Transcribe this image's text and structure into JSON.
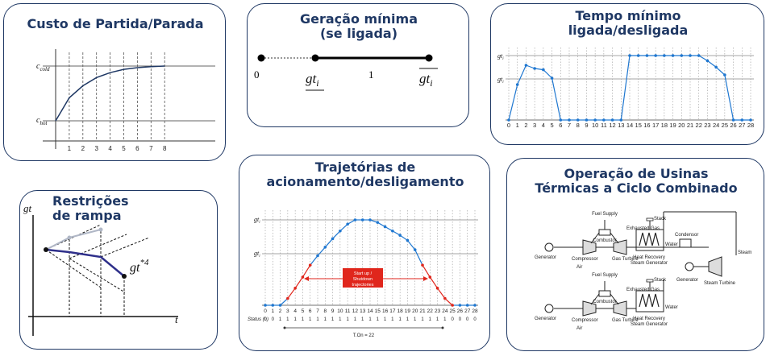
{
  "panels": {
    "startup_cost": {
      "title": "Custo de Partida/Parada",
      "y_labels": [
        "c",
        "cold",
        "c",
        "hot"
      ],
      "x_ticks": [
        "1",
        "2",
        "3",
        "4",
        "5",
        "6",
        "7",
        "8"
      ],
      "curve_values": [
        0.0,
        0.42,
        0.64,
        0.79,
        0.88,
        0.94,
        0.97,
        0.99,
        1.0
      ]
    },
    "min_generation": {
      "title_line1": "Geração mínima",
      "title_line2": "(se ligada)",
      "label_zero": "0",
      "label_one": "1",
      "label_gt": "gt",
      "label_i": "i"
    },
    "min_time": {
      "title_line1": "Tempo mínimo",
      "title_line2": "ligada/desligada",
      "y_labels": [
        "gt",
        "i",
        "gt",
        "i"
      ],
      "x_ticks": [
        "0",
        "1",
        "2",
        "3",
        "4",
        "5",
        "6",
        "7",
        "8",
        "9",
        "10",
        "11",
        "12",
        "13",
        "14",
        "15",
        "16",
        "17",
        "18",
        "19",
        "20",
        "21",
        "22",
        "23",
        "24",
        "25",
        "26",
        "27",
        "28"
      ],
      "profile": [
        0,
        0.55,
        0.85,
        0.8,
        0.78,
        0.65,
        0,
        0,
        0,
        0,
        0,
        0,
        0,
        0,
        1,
        1,
        1,
        1,
        1,
        1,
        1,
        1,
        1,
        0.92,
        0.82,
        0.7,
        0,
        0,
        0
      ]
    },
    "ramp": {
      "title_line1": "Restrições",
      "title_line2": "de rampa",
      "axis_y": "gt",
      "axis_x": "t",
      "point_label": "gt",
      "point_sup": "*4"
    },
    "trajectories": {
      "title_line1": "Trajetórias de",
      "title_line2": "acionamento/desligamento",
      "y_labels": [
        "gt",
        "i",
        "gt",
        "i"
      ],
      "x_ticks": [
        "0",
        "1",
        "2",
        "3",
        "4",
        "5",
        "6",
        "7",
        "8",
        "9",
        "10",
        "11",
        "12",
        "13",
        "14",
        "15",
        "16",
        "17",
        "18",
        "19",
        "20",
        "21",
        "22",
        "23",
        "24",
        "25",
        "26",
        "27",
        "28"
      ],
      "status_label": "Status (u)",
      "status_values": [
        "0",
        "0",
        "1",
        "1",
        "1",
        "1",
        "1",
        "1",
        "1",
        "1",
        "1",
        "1",
        "1",
        "1",
        "1",
        "1",
        "1",
        "1",
        "1",
        "1",
        "1",
        "1",
        "1",
        "1",
        "1",
        "0",
        "0",
        "0",
        "0"
      ],
      "box_line1": "Start up /",
      "box_line2": "Shutdown",
      "box_line3": "trajectories",
      "ton_label": "T.On = 22",
      "profile": [
        0,
        0,
        0,
        0.08,
        0.2,
        0.33,
        0.47,
        0.58,
        0.68,
        0.78,
        0.87,
        0.95,
        1,
        1,
        1,
        0.97,
        0.92,
        0.87,
        0.82,
        0.76,
        0.65,
        0.47,
        0.33,
        0.2,
        0.08,
        0,
        0,
        0,
        0
      ],
      "colors": {
        "blue": "#1f77d0",
        "red": "#e0261c"
      }
    },
    "combined_cycle": {
      "title_line1": "Operação de Usinas",
      "title_line2": "Térmicas a Ciclo Combinado",
      "labels": {
        "fuel_supply": "Fuel Supply",
        "combustor": "Combustor",
        "exhausted_gas": "Exhausted Gas",
        "generator": "Generator",
        "compressor": "Compressor",
        "gas_turbine": "Gas Turbine",
        "air": "Air",
        "stack": "Stack",
        "condensor": "Condensor",
        "water": "Water",
        "steam": "Steam",
        "hrsg_line1": "Heat Recovery",
        "hrsg_line2": "Steam Generator",
        "steam_turbine": "Steam Turbine"
      }
    }
  }
}
